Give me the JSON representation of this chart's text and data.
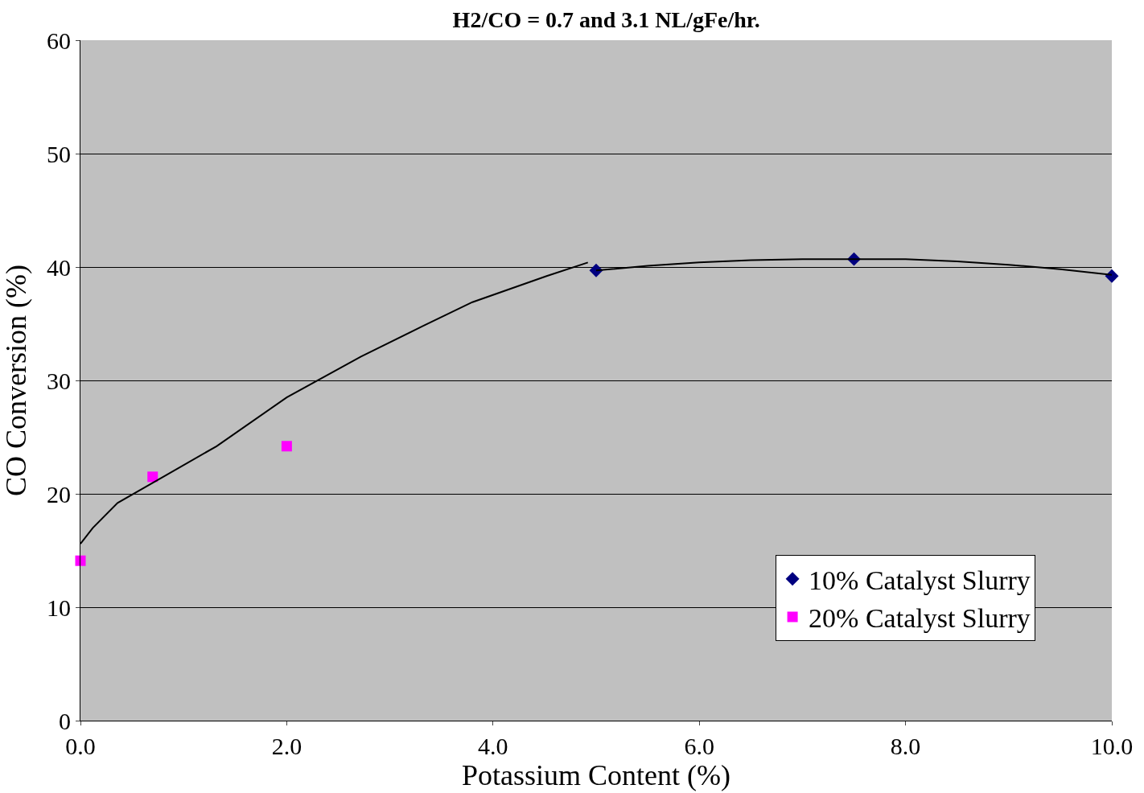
{
  "chart_data": {
    "type": "scatter",
    "title": "H2/CO = 0.7 and 3.1 NL/gFe/hr.",
    "xlabel": "Potassium Content (%)",
    "ylabel": "CO Conversion (%)",
    "series": [
      {
        "name": "10% Catalyst Slurry",
        "color": "#000080",
        "marker": "diamond",
        "x": [
          5.0,
          7.5,
          10.0
        ],
        "values": [
          39.7,
          40.7,
          39.2
        ]
      },
      {
        "name": "20% Catalyst Slurry",
        "color": "#ff00ff",
        "marker": "square",
        "x": [
          0.0,
          0.7,
          2.0
        ],
        "values": [
          14.1,
          21.5,
          24.2
        ]
      },
      {
        "type": "line",
        "color": "#000000",
        "marker": "none",
        "x": [
          0.0,
          0.12,
          0.36,
          0.84,
          1.32,
          2.0,
          2.72,
          3.32,
          3.8,
          4.52,
          4.92
        ],
        "values": [
          15.6,
          17.0,
          19.2,
          21.7,
          24.2,
          28.5,
          32.1,
          34.8,
          36.9,
          39.2,
          40.4
        ]
      },
      {
        "type": "line",
        "color": "#000000",
        "marker": "none",
        "x": [
          5.0,
          5.5,
          6.0,
          6.5,
          7.0,
          7.5,
          8.0,
          8.5,
          9.0,
          9.5,
          10.0
        ],
        "values": [
          39.7,
          40.1,
          40.4,
          40.6,
          40.7,
          40.7,
          40.7,
          40.5,
          40.2,
          39.8,
          39.3
        ]
      }
    ],
    "xlim": [
      0,
      10
    ],
    "xticks": [
      {
        "value": 0,
        "label": "0.0"
      },
      {
        "value": 2,
        "label": "2.0"
      },
      {
        "value": 4,
        "label": "4.0"
      },
      {
        "value": 6,
        "label": "6.0"
      },
      {
        "value": 8,
        "label": "8.0"
      },
      {
        "value": 10,
        "label": "10.0"
      }
    ],
    "ylim": [
      0,
      60
    ],
    "yticks": [
      0,
      10,
      20,
      30,
      40,
      50,
      60
    ],
    "grid": "y",
    "legend": "bottom right"
  }
}
